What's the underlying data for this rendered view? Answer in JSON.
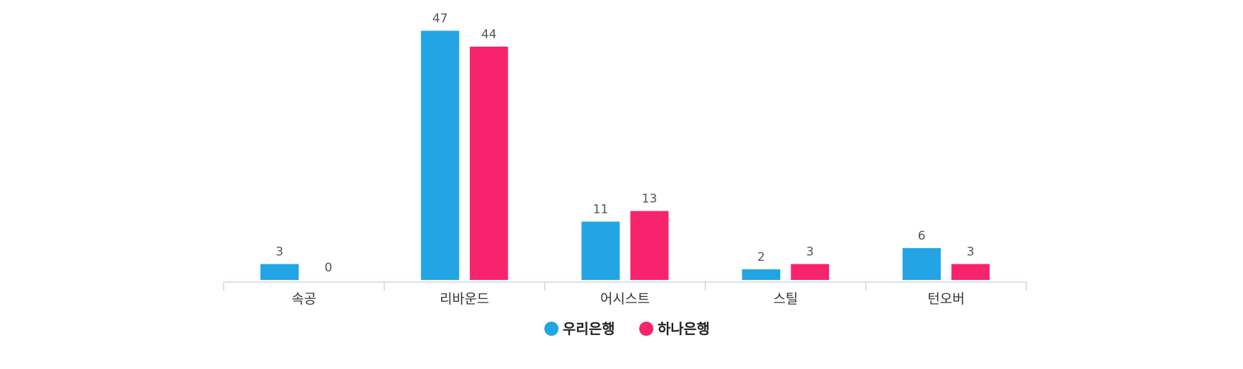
{
  "chart_data": {
    "type": "bar",
    "categories": [
      "속공",
      "리바운드",
      "어시스트",
      "스틸",
      "턴오버"
    ],
    "series": [
      {
        "name": "우리은행",
        "color": "#23A4E4",
        "values": [
          3,
          47,
          11,
          2,
          6
        ]
      },
      {
        "name": "하나은행",
        "color": "#F7236C",
        "values": [
          0,
          44,
          13,
          3,
          3
        ]
      }
    ],
    "ylim": [
      0,
      48
    ],
    "grid": false,
    "legend": "bottom-center",
    "data_labels": true
  }
}
